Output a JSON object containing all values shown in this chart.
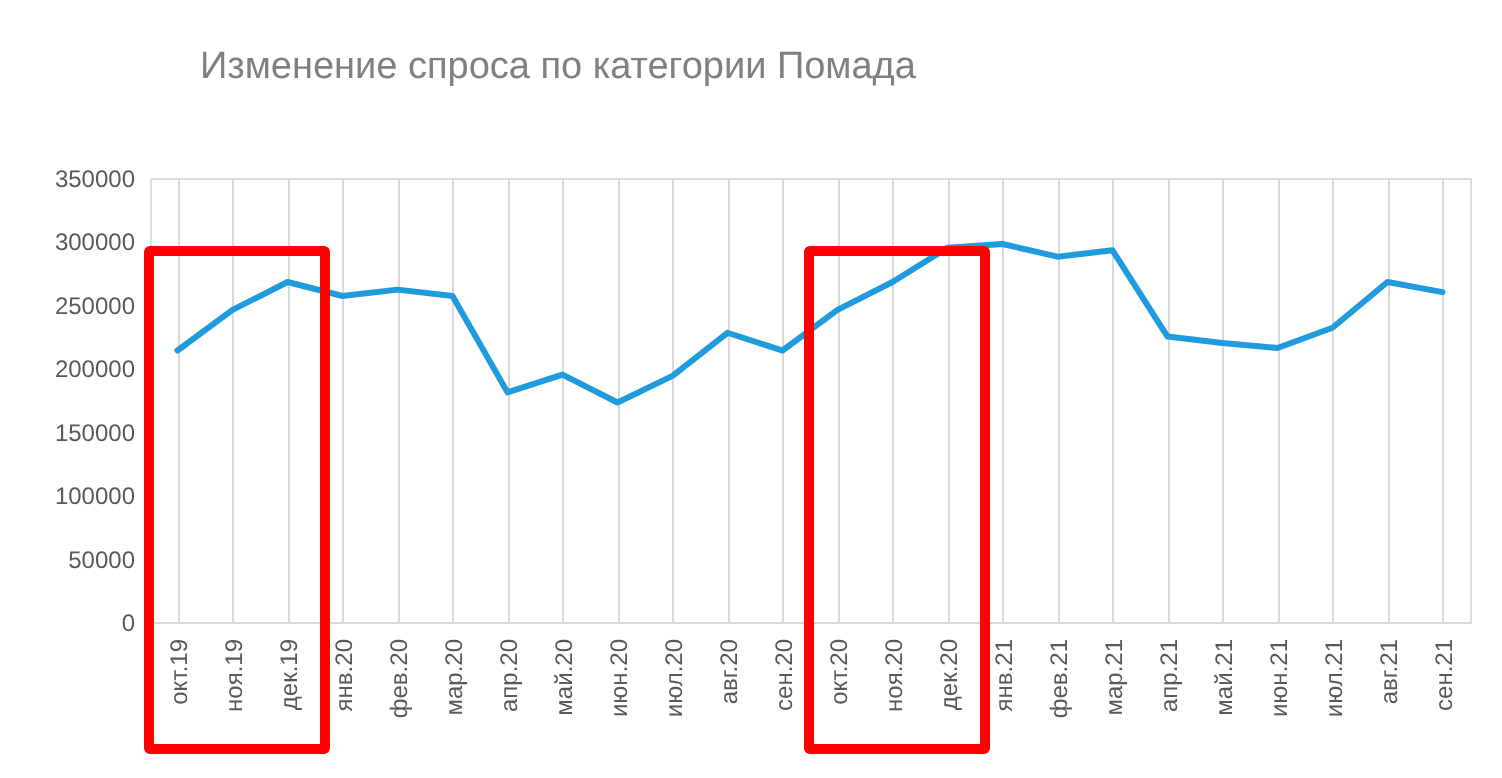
{
  "chart_data": {
    "type": "line",
    "title": "Изменение спроса по категории Помада",
    "categories": [
      "окт.19",
      "ноя.19",
      "дек.19",
      "янв.20",
      "фев.20",
      "мар.20",
      "апр.20",
      "май.20",
      "июн.20",
      "июл.20",
      "авг.20",
      "сен.20",
      "окт.20",
      "ноя.20",
      "дек.20",
      "янв.21",
      "фев.21",
      "мар.21",
      "апр.21",
      "май.21",
      "июн.21",
      "июл.21",
      "авг.21",
      "сен.21"
    ],
    "series": [
      {
        "color": "#1f9bde",
        "values": [
          214000,
          246000,
          268000,
          257000,
          262000,
          257000,
          181000,
          195000,
          173000,
          194000,
          228000,
          214000,
          246000,
          268000,
          295000,
          298000,
          288000,
          293000,
          225000,
          220000,
          216000,
          232000,
          268000,
          260000
        ]
      }
    ],
    "ylim": [
      0,
      350000
    ],
    "yticks": [
      0,
      50000,
      100000,
      150000,
      200000,
      250000,
      300000,
      350000
    ],
    "grid": "x",
    "legend": false,
    "marker": "none",
    "line_style": "solid"
  }
}
